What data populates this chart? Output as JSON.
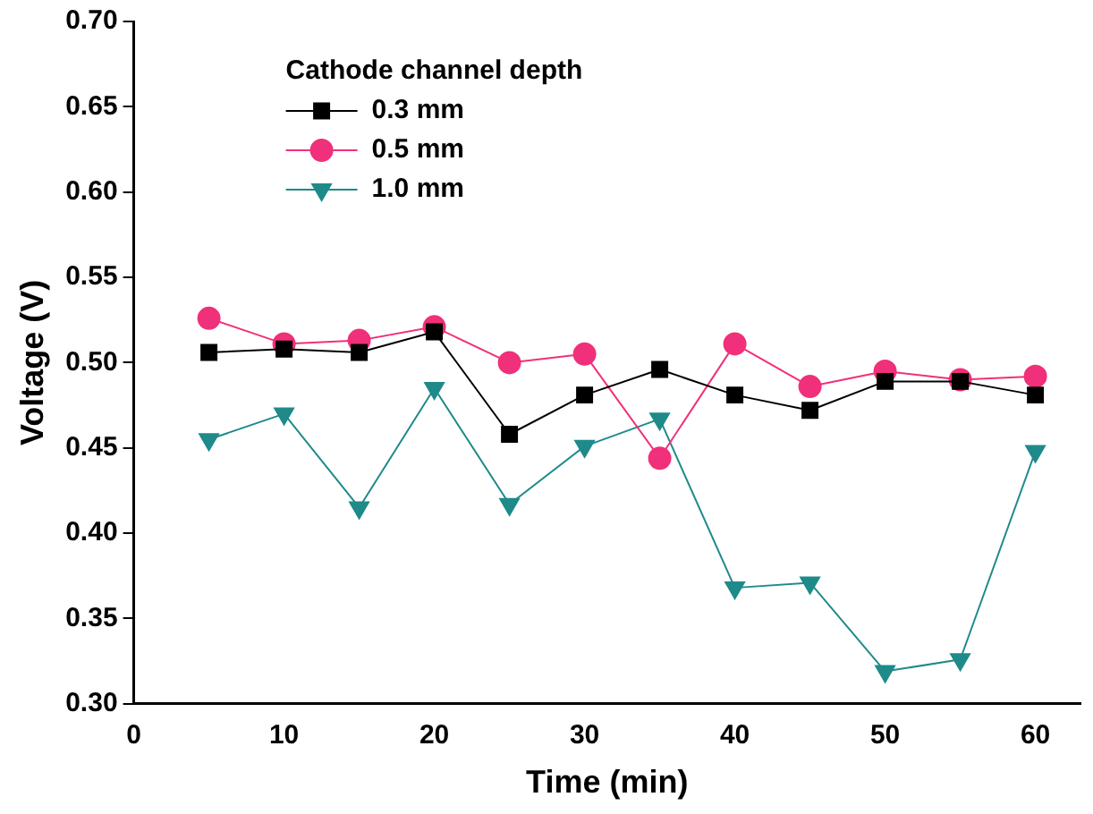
{
  "chart_data": {
    "type": "line",
    "xlabel": "Time (min)",
    "ylabel": "Voltage (V)",
    "legend_title": "Cathode channel depth",
    "legend": "top left",
    "grid": false,
    "x": [
      5,
      10,
      15,
      20,
      25,
      30,
      35,
      40,
      45,
      50,
      55,
      60
    ],
    "xlim": [
      0,
      63
    ],
    "xticks": [
      0,
      10,
      20,
      30,
      40,
      50,
      60
    ],
    "ylim": [
      0.3,
      0.7
    ],
    "yticks": [
      {
        "value": 0.3,
        "label": "0.30"
      },
      {
        "value": 0.35,
        "label": "0.35"
      },
      {
        "value": 0.4,
        "label": "0.40"
      },
      {
        "value": 0.45,
        "label": "0.45"
      },
      {
        "value": 0.5,
        "label": "0.50"
      },
      {
        "value": 0.55,
        "label": "0.55"
      },
      {
        "value": 0.6,
        "label": "0.60"
      },
      {
        "value": 0.65,
        "label": "0.65"
      },
      {
        "value": 0.7,
        "label": "0.70"
      }
    ],
    "series": [
      {
        "name": "0.3 mm",
        "color": "#000000",
        "marker": "square",
        "values": [
          0.506,
          0.508,
          0.506,
          0.518,
          0.458,
          0.481,
          0.496,
          0.481,
          0.472,
          0.489,
          0.489,
          0.481
        ]
      },
      {
        "name": "0.5 mm",
        "color": "#f0307a",
        "marker": "circle",
        "values": [
          0.526,
          0.511,
          0.513,
          0.521,
          0.5,
          0.505,
          0.444,
          0.511,
          0.486,
          0.495,
          0.49,
          0.492
        ]
      },
      {
        "name": "1.0 mm",
        "color": "#1f8a8a",
        "marker": "triangle",
        "values": [
          0.455,
          0.47,
          0.415,
          0.485,
          0.417,
          0.451,
          0.467,
          0.368,
          0.371,
          0.319,
          0.326,
          0.448
        ]
      }
    ]
  }
}
